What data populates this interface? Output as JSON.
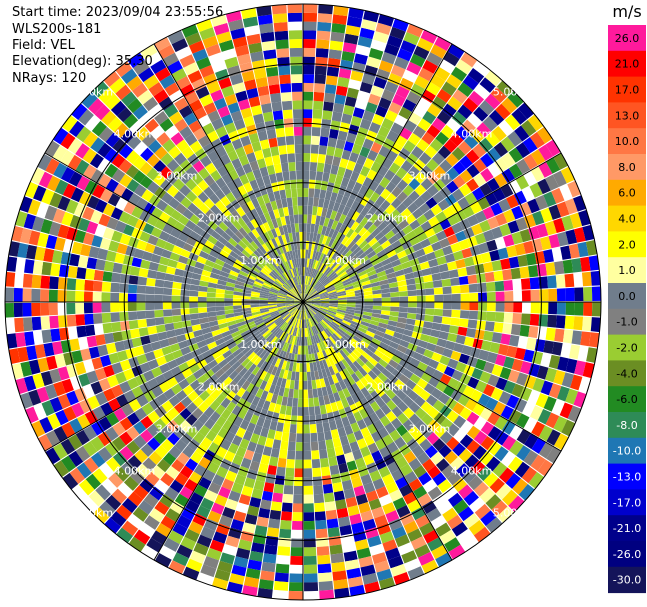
{
  "header": {
    "start_time": "Start time: 2023/09/04 23:55:56",
    "instrument": "WLS200s-181",
    "field": "Field: VEL",
    "elevation": "Elevation(deg): 35.30",
    "nrays": "NRays: 120"
  },
  "chart_data": {
    "type": "heatmap",
    "projection": "polar-ppi",
    "field": "VEL",
    "units": "m/s",
    "nrays": 120,
    "range_rings_km": [
      1.0,
      2.0,
      3.0,
      4.0,
      5.0
    ],
    "ring_labels": [
      "1.00km",
      "2.00km",
      "3.00km",
      "4.00km",
      "5.00km"
    ],
    "spokes_deg": [
      0,
      30,
      60,
      90,
      120,
      150,
      180,
      210,
      240,
      270,
      300,
      330
    ],
    "colorbar": {
      "label": "m/s",
      "ticks": [
        "26.0",
        "21.0",
        "17.0",
        "13.0",
        "10.0",
        "8.0",
        "6.0",
        "4.0",
        "2.0",
        "1.0",
        "0.0",
        "-1.0",
        "-2.0",
        "-4.0",
        "-6.0",
        "-8.0",
        "-10.0",
        "-13.0",
        "-17.0",
        "-21.0",
        "-26.0",
        "-30.0"
      ],
      "colors": [
        "#ff1a9c",
        "#ff0000",
        "#ff3300",
        "#ff5522",
        "#ff7744",
        "#ff9966",
        "#ffaa00",
        "#ffd700",
        "#ffff00",
        "#ffffa0",
        "#707d8c",
        "#808080",
        "#9acd32",
        "#6b8e23",
        "#228b22",
        "#2e8b57",
        "#1f77b4",
        "#0000ff",
        "#0000cd",
        "#00008b",
        "#000080",
        "#14145a"
      ]
    }
  }
}
